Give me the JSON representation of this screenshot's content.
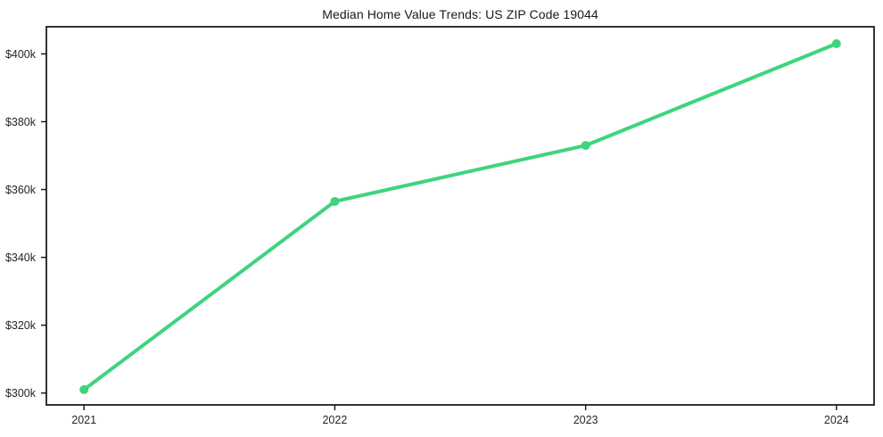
{
  "page": {
    "background_color": "#ffffff"
  },
  "chart_data": {
    "type": "line",
    "title": "Median Home Value Trends: US ZIP Code 19044",
    "series": [
      {
        "name": "Median home value",
        "x": [
          2021,
          2022,
          2023,
          2024
        ],
        "values_usd_thousands": [
          301,
          356.5,
          373,
          403
        ]
      }
    ],
    "xlabel": "",
    "ylabel": "",
    "units": "USD thousands",
    "xticks": [
      {
        "value": 2021,
        "label": "2021"
      },
      {
        "value": 2022,
        "label": "2022"
      },
      {
        "value": 2023,
        "label": "2023"
      },
      {
        "value": 2024,
        "label": "2024"
      }
    ],
    "yticks": [
      {
        "value": 300,
        "label": "$300k"
      },
      {
        "value": 320,
        "label": "$320k"
      },
      {
        "value": 340,
        "label": "$340k"
      },
      {
        "value": 360,
        "label": "$360k"
      },
      {
        "value": 380,
        "label": "$380k"
      },
      {
        "value": 400,
        "label": "$400k"
      }
    ],
    "xlim": [
      2020.85,
      2024.15
    ],
    "ylim_usd_thousands": [
      296.5,
      408
    ],
    "grid": false,
    "legend_position": "none",
    "line_color": "#3ed47e",
    "marker_style": "circle",
    "line_width": 4,
    "marker_radius": 5,
    "frame_color": "#111111",
    "text_color": "#262626"
  }
}
